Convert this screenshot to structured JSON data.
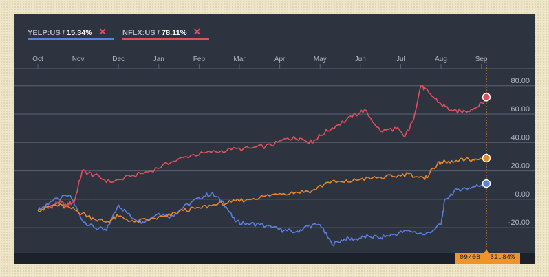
{
  "legend": [
    {
      "name": "YELP:US",
      "value": "15.34%",
      "color": "#5b7fdc",
      "remove": "✕"
    },
    {
      "name": "NFLX:US",
      "value": "78.11%",
      "color": "#e0505c",
      "remove": "✕"
    }
  ],
  "readout": {
    "date": "09/08",
    "value": "32.84%"
  },
  "colors": {
    "yelp": "#5b7fdc",
    "nflx": "#e0505c",
    "index": "#e8862a",
    "grid": "#5a6270",
    "axis_text": "#aeb6c2",
    "crosshair": "#f0932b"
  },
  "chart_data": {
    "type": "line",
    "x_ticks": [
      "Oct",
      "Nov",
      "Dec",
      "Jan",
      "Feb",
      "Mar",
      "Apr",
      "May",
      "Jun",
      "Jul",
      "Aug",
      "Sep"
    ],
    "y_ticks": [
      "80.00",
      "60.00",
      "40.00",
      "20.00",
      "0.00",
      "-20.00"
    ],
    "ylim": [
      -34,
      92
    ],
    "y_axis_side": "right",
    "grid": true,
    "series": [
      {
        "name": "YELP:US",
        "color": "#5b7fdc",
        "x": [
          0,
          0.3,
          0.8,
          1.1,
          1.4,
          1.7,
          2.0,
          2.3,
          2.6,
          3.0,
          3.3,
          3.6,
          4.0,
          4.3,
          4.6,
          4.9,
          5.2,
          5.5,
          5.8,
          6.1,
          6.4,
          6.7,
          7.0,
          7.3,
          7.6,
          7.9,
          8.2,
          8.5,
          8.8,
          9.2,
          9.6,
          10.0,
          10.1,
          10.4,
          10.7,
          11.0,
          11.2
        ],
        "y": [
          -8,
          -2,
          3,
          -15,
          -20,
          -22,
          -4,
          -12,
          -16,
          -10,
          -12,
          -6,
          1,
          4,
          -2,
          -16,
          -17,
          -18,
          -20,
          -22,
          -23,
          -19,
          -18,
          -32,
          -28,
          -28,
          -26,
          -27,
          -25,
          -22,
          -25,
          -18,
          0,
          7,
          8,
          10,
          11
        ]
      },
      {
        "name": "NFLX:US",
        "color": "#e0505c",
        "x": [
          0,
          0.3,
          0.5,
          0.7,
          0.9,
          1.1,
          1.4,
          1.8,
          2.3,
          2.8,
          3.3,
          3.8,
          4.3,
          4.8,
          5.3,
          5.8,
          6.2,
          6.5,
          6.8,
          7.0,
          7.4,
          7.8,
          8.1,
          8.5,
          8.9,
          9.1,
          9.3,
          9.5,
          9.7,
          10.0,
          10.3,
          10.6,
          10.9,
          11.2
        ],
        "y": [
          -8,
          -6,
          -2,
          -4,
          -2,
          20,
          17,
          12,
          16,
          20,
          26,
          31,
          33,
          35,
          36,
          38,
          43,
          43,
          40,
          45,
          52,
          58,
          63,
          48,
          50,
          44,
          55,
          80,
          75,
          67,
          62,
          62,
          65,
          72
        ]
      },
      {
        "name": "",
        "color": "#e8862a",
        "x": [
          0,
          0.4,
          0.8,
          1.1,
          1.4,
          1.7,
          2.0,
          2.4,
          2.8,
          3.2,
          3.6,
          4.0,
          4.4,
          4.8,
          5.2,
          5.6,
          6.0,
          6.4,
          6.8,
          7.2,
          7.6,
          8.0,
          8.4,
          8.8,
          9.2,
          9.6,
          9.8,
          10.0,
          10.3,
          10.6,
          10.9,
          11.2
        ],
        "y": [
          -8,
          -4,
          -6,
          -10,
          -14,
          -16,
          -12,
          -16,
          -14,
          -12,
          -8,
          -6,
          -4,
          -2,
          0,
          2,
          4,
          5,
          6,
          12,
          12,
          14,
          15,
          16,
          18,
          14,
          22,
          26,
          26,
          28,
          28,
          29
        ]
      }
    ],
    "end_markers": [
      {
        "series": "NFLX:US",
        "y": 72
      },
      {
        "series": "",
        "y": 29
      },
      {
        "series": "YELP:US",
        "y": 11
      }
    ]
  }
}
